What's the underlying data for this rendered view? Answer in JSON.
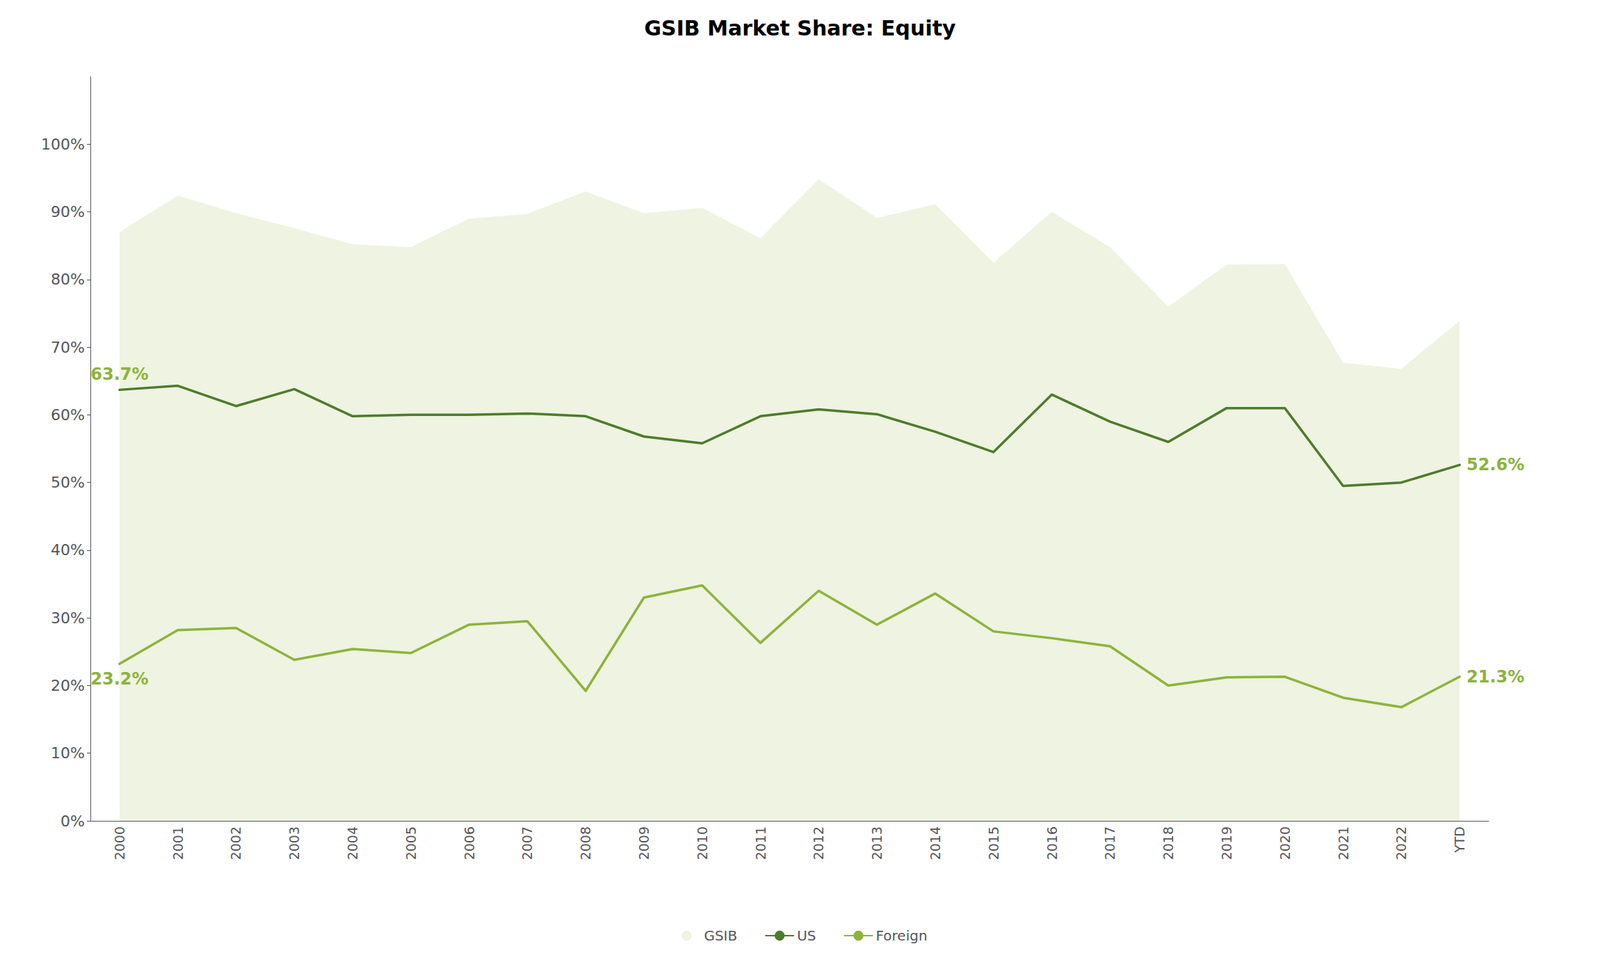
{
  "chart_data": {
    "type": "line",
    "title": "GSIB Market Share: Equity",
    "categories": [
      "2000",
      "2001",
      "2002",
      "2003",
      "2004",
      "2005",
      "2006",
      "2007",
      "2008",
      "2009",
      "2010",
      "2011",
      "2012",
      "2013",
      "2014",
      "2015",
      "2016",
      "2017",
      "2018",
      "2019",
      "2020",
      "2021",
      "2022",
      "YTD"
    ],
    "series": [
      {
        "name": "GSIB",
        "type": "area",
        "color": "#eef3e2",
        "values": [
          0.87,
          0.924,
          0.898,
          0.876,
          0.852,
          0.848,
          0.89,
          0.897,
          0.93,
          0.898,
          0.906,
          0.861,
          0.948,
          0.891,
          0.911,
          0.825,
          0.9,
          0.848,
          0.76,
          0.822,
          0.823,
          0.677,
          0.668,
          0.739
        ]
      },
      {
        "name": "US",
        "type": "line",
        "color": "#4d7c2a",
        "values": [
          0.637,
          0.643,
          0.613,
          0.638,
          0.598,
          0.6,
          0.6,
          0.602,
          0.598,
          0.568,
          0.558,
          0.598,
          0.608,
          0.601,
          0.575,
          0.545,
          0.63,
          0.59,
          0.56,
          0.61,
          0.61,
          0.495,
          0.5,
          0.526
        ]
      },
      {
        "name": "Foreign",
        "type": "line",
        "color": "#8db33a",
        "values": [
          0.232,
          0.282,
          0.285,
          0.238,
          0.254,
          0.248,
          0.29,
          0.295,
          0.192,
          0.33,
          0.348,
          0.263,
          0.34,
          0.29,
          0.336,
          0.28,
          0.27,
          0.258,
          0.2,
          0.212,
          0.213,
          0.182,
          0.168,
          0.213
        ]
      }
    ],
    "annotations": [
      {
        "text": "63.7%",
        "series": "US",
        "category": "2000",
        "color": "#8db33a"
      },
      {
        "text": "23.2%",
        "series": "Foreign",
        "category": "2000",
        "color": "#8db33a"
      },
      {
        "text": "52.6%",
        "series": "US",
        "category": "YTD",
        "color": "#8db33a"
      },
      {
        "text": "21.3%",
        "series": "Foreign",
        "category": "YTD",
        "color": "#8db33a"
      }
    ],
    "ylim": [
      0,
      1.1
    ],
    "yticks": [
      {
        "value": 0,
        "label": "0%"
      },
      {
        "value": 0.1,
        "label": "10%"
      },
      {
        "value": 0.2,
        "label": "20%"
      },
      {
        "value": 0.3,
        "label": "30%"
      },
      {
        "value": 0.4,
        "label": "40%"
      },
      {
        "value": 0.5,
        "label": "50%"
      },
      {
        "value": 0.6,
        "label": "60%"
      },
      {
        "value": 0.7,
        "label": "70%"
      },
      {
        "value": 0.8,
        "label": "80%"
      },
      {
        "value": 0.9,
        "label": "90%"
      },
      {
        "value": 1.0,
        "label": "100%"
      }
    ],
    "grid": false,
    "legend": "bottom"
  }
}
